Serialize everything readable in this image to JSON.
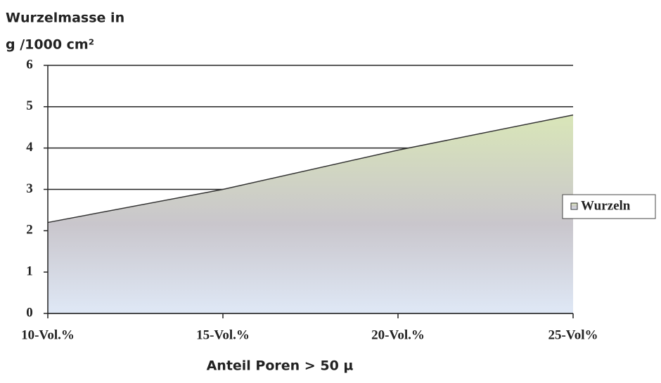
{
  "chart_data": {
    "type": "area",
    "title": [
      "Wurzelmasse in",
      "g /1000 cm²"
    ],
    "x_label": "Anteil Poren > 50 µ",
    "categories": [
      "10-Vol.%",
      "15-Vol.%",
      "20-Vol.%",
      "25-Vol%"
    ],
    "series": [
      {
        "name": "Wurzeln",
        "color": "#333333",
        "values": [
          2.2,
          3.0,
          3.95,
          4.8
        ]
      }
    ],
    "ylim": [
      0,
      6
    ],
    "yticks": [
      0,
      1,
      2,
      3,
      4,
      5,
      6
    ],
    "grid": true,
    "legend": "right"
  }
}
